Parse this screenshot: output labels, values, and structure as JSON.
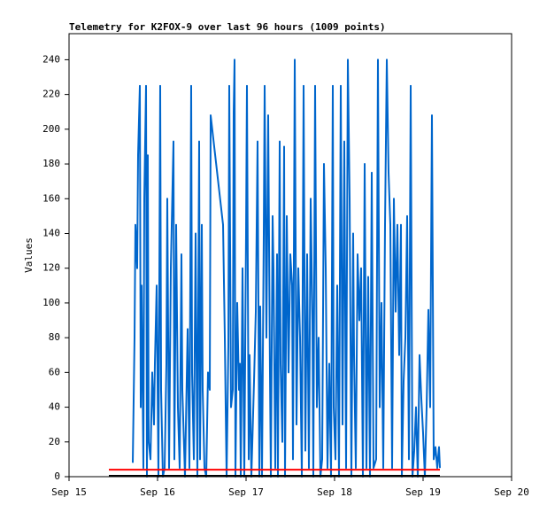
{
  "chart_data": {
    "type": "line",
    "title": "Telemetry for K2FOX-9 over last 96 hours (1009 points)",
    "y_label": "Values",
    "xlim": [
      0,
      5
    ],
    "ylim": [
      0,
      255
    ],
    "xticks": [
      {
        "value": 0,
        "label": "Sep 15"
      },
      {
        "value": 1,
        "label": "Sep 16"
      },
      {
        "value": 2,
        "label": "Sep 17"
      },
      {
        "value": 3,
        "label": "Sep 18"
      },
      {
        "value": 4,
        "label": "Sep 19"
      },
      {
        "value": 5,
        "label": "Sep 20"
      }
    ],
    "yticks": [
      0,
      20,
      40,
      60,
      80,
      100,
      120,
      140,
      160,
      180,
      200,
      220,
      240
    ],
    "grid": false,
    "series": [
      {
        "color": "#0066cc",
        "x": [
          0.72,
          0.74,
          0.75,
          0.77,
          0.78,
          0.8,
          0.81,
          0.82,
          0.84,
          0.85,
          0.87,
          0.88,
          0.89,
          0.9,
          0.92,
          0.94,
          0.96,
          0.97,
          0.99,
          1.01,
          1.03,
          1.04,
          1.06,
          1.08,
          1.1,
          1.11,
          1.13,
          1.15,
          1.18,
          1.19,
          1.21,
          1.23,
          1.25,
          1.27,
          1.28,
          1.31,
          1.34,
          1.36,
          1.38,
          1.39,
          1.41,
          1.43,
          1.45,
          1.47,
          1.48,
          1.5,
          1.51,
          1.53,
          1.55,
          1.57,
          1.59,
          1.6,
          1.74,
          1.76,
          1.78,
          1.8,
          1.81,
          1.83,
          1.85,
          1.86,
          1.87,
          1.88,
          1.9,
          1.92,
          1.93,
          1.94,
          1.96,
          1.98,
          2.0,
          2.01,
          2.03,
          2.04,
          2.06,
          2.09,
          2.11,
          2.13,
          2.15,
          2.16,
          2.18,
          2.2,
          2.21,
          2.23,
          2.25,
          2.27,
          2.28,
          2.3,
          2.31,
          2.33,
          2.35,
          2.36,
          2.38,
          2.39,
          2.41,
          2.43,
          2.44,
          2.46,
          2.48,
          2.5,
          2.52,
          2.53,
          2.55,
          2.57,
          2.59,
          2.61,
          2.63,
          2.65,
          2.67,
          2.69,
          2.71,
          2.73,
          2.75,
          2.76,
          2.78,
          2.8,
          2.82,
          2.84,
          2.86,
          2.88,
          2.9,
          2.92,
          2.94,
          2.96,
          2.98,
          2.99,
          3.01,
          3.03,
          3.05,
          3.07,
          3.09,
          3.11,
          3.13,
          3.15,
          3.17,
          3.19,
          3.21,
          3.22,
          3.24,
          3.26,
          3.28,
          3.3,
          3.32,
          3.34,
          3.36,
          3.38,
          3.4,
          3.42,
          3.44,
          3.47,
          3.49,
          3.51,
          3.53,
          3.55,
          3.57,
          3.59,
          3.61,
          3.63,
          3.65,
          3.67,
          3.69,
          3.71,
          3.73,
          3.75,
          3.76,
          3.78,
          3.8,
          3.82,
          3.84,
          3.86,
          3.88,
          3.9,
          3.92,
          3.94,
          3.96,
          3.98,
          4.0,
          4.02,
          4.04,
          4.06,
          4.08,
          4.1,
          4.12,
          4.14,
          4.16,
          4.18,
          4.19
        ],
        "values": [
          8,
          80,
          145,
          120,
          185,
          225,
          40,
          110,
          5,
          160,
          225,
          0,
          185,
          20,
          10,
          60,
          30,
          65,
          110,
          0,
          225,
          50,
          0,
          5,
          65,
          160,
          5,
          120,
          193,
          10,
          145,
          40,
          5,
          128,
          50,
          0,
          85,
          5,
          225,
          60,
          10,
          140,
          0,
          193,
          10,
          145,
          50,
          5,
          0,
          60,
          50,
          208,
          145,
          80,
          0,
          75,
          225,
          40,
          50,
          210,
          240,
          0,
          100,
          50,
          65,
          0,
          120,
          0,
          140,
          225,
          10,
          70,
          0,
          55,
          95,
          193,
          0,
          98,
          0,
          140,
          225,
          80,
          208,
          60,
          0,
          150,
          120,
          5,
          128,
          0,
          193,
          65,
          20,
          190,
          0,
          150,
          60,
          128,
          110,
          10,
          240,
          30,
          120,
          80,
          0,
          225,
          15,
          128,
          5,
          160,
          90,
          0,
          225,
          40,
          80,
          0,
          10,
          180,
          120,
          5,
          65,
          0,
          225,
          40,
          10,
          110,
          0,
          225,
          30,
          193,
          5,
          240,
          160,
          0,
          140,
          70,
          5,
          128,
          90,
          120,
          0,
          180,
          5,
          115,
          0,
          175,
          5,
          10,
          240,
          40,
          100,
          5,
          145,
          240,
          175,
          145,
          5,
          160,
          95,
          145,
          70,
          145,
          0,
          55,
          80,
          150,
          10,
          225,
          0,
          15,
          40,
          0,
          70,
          45,
          25,
          0,
          40,
          96,
          40,
          208,
          10,
          17,
          5,
          17,
          5
        ]
      },
      {
        "color": "#ff0000",
        "x": [
          0.45,
          4.19
        ],
        "values": [
          4,
          4
        ]
      },
      {
        "color": "#000000",
        "x": [
          0.45,
          4.19
        ],
        "values": [
          0.5,
          0.5
        ]
      }
    ]
  }
}
